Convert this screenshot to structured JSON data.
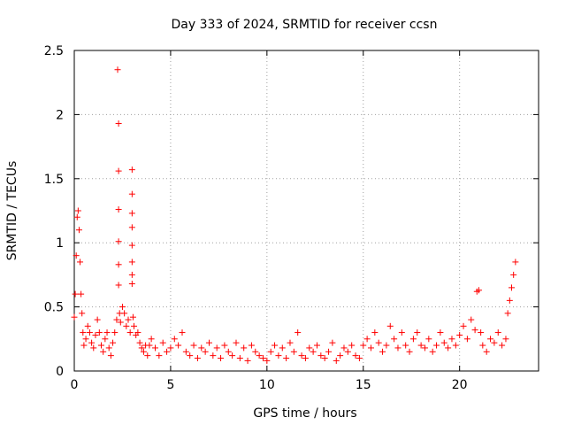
{
  "chart_data": {
    "type": "scatter",
    "title": "Day 333 of 2024, SRMTID for receiver ccsn",
    "xlabel": "GPS time / hours",
    "ylabel": "SRMTID / TECUs",
    "xlim": [
      0,
      24.1
    ],
    "ylim": [
      0,
      2.5
    ],
    "xticks": [
      0,
      5,
      10,
      15,
      20
    ],
    "yticks": [
      0,
      0.5,
      1,
      1.5,
      2,
      2.5
    ],
    "xtick_labels": [
      "0",
      "5",
      "10",
      "15",
      "20"
    ],
    "ytick_labels": [
      "0",
      "0.5",
      "1",
      "1.5",
      "2",
      "2.5"
    ],
    "grid": true,
    "marker": "+",
    "color": "#ff0000",
    "series": [
      {
        "name": "SRMTID",
        "x": [
          0.0,
          0.05,
          0.1,
          0.15,
          0.2,
          0.25,
          0.3,
          0.35,
          0.4,
          0.45,
          0.5,
          0.6,
          0.7,
          0.8,
          0.9,
          1.0,
          1.1,
          1.2,
          1.3,
          1.4,
          1.5,
          1.6,
          1.7,
          1.8,
          1.9,
          2.0,
          2.1,
          2.2,
          2.25,
          2.3,
          2.3,
          2.3,
          2.3,
          2.3,
          2.3,
          2.35,
          2.4,
          2.5,
          2.6,
          2.7,
          2.8,
          2.9,
          3.0,
          3.0,
          3.0,
          3.0,
          3.0,
          3.0,
          3.0,
          3.0,
          3.05,
          3.1,
          3.2,
          3.3,
          3.4,
          3.5,
          3.6,
          3.7,
          3.8,
          3.9,
          4.0,
          4.2,
          4.4,
          4.6,
          4.8,
          5.0,
          5.2,
          5.4,
          5.6,
          5.8,
          6.0,
          6.2,
          6.4,
          6.6,
          6.8,
          7.0,
          7.2,
          7.4,
          7.6,
          7.8,
          8.0,
          8.2,
          8.4,
          8.6,
          8.8,
          9.0,
          9.2,
          9.4,
          9.6,
          9.8,
          10.0,
          10.2,
          10.4,
          10.6,
          10.8,
          11.0,
          11.2,
          11.4,
          11.6,
          11.8,
          12.0,
          12.2,
          12.4,
          12.6,
          12.8,
          13.0,
          13.2,
          13.4,
          13.6,
          13.8,
          14.0,
          14.2,
          14.4,
          14.6,
          14.8,
          15.0,
          15.2,
          15.4,
          15.6,
          15.8,
          16.0,
          16.2,
          16.4,
          16.6,
          16.8,
          17.0,
          17.2,
          17.4,
          17.6,
          17.8,
          18.0,
          18.2,
          18.4,
          18.6,
          18.8,
          19.0,
          19.2,
          19.4,
          19.6,
          19.8,
          20.0,
          20.2,
          20.4,
          20.6,
          20.8,
          20.9,
          21.0,
          21.1,
          21.2,
          21.4,
          21.6,
          21.8,
          22.0,
          22.2,
          22.4,
          22.5,
          22.6,
          22.7,
          22.8,
          22.9
        ],
        "y": [
          0.42,
          0.6,
          0.9,
          1.2,
          1.25,
          1.1,
          0.85,
          0.6,
          0.45,
          0.3,
          0.2,
          0.25,
          0.35,
          0.3,
          0.22,
          0.18,
          0.28,
          0.4,
          0.3,
          0.2,
          0.15,
          0.25,
          0.3,
          0.18,
          0.12,
          0.22,
          0.3,
          0.4,
          2.35,
          1.93,
          1.56,
          1.26,
          1.01,
          0.83,
          0.67,
          0.45,
          0.38,
          0.5,
          0.45,
          0.35,
          0.4,
          0.3,
          1.57,
          1.38,
          1.23,
          1.12,
          0.98,
          0.85,
          0.75,
          0.68,
          0.42,
          0.35,
          0.28,
          0.3,
          0.22,
          0.18,
          0.15,
          0.2,
          0.12,
          0.2,
          0.25,
          0.18,
          0.12,
          0.22,
          0.15,
          0.18,
          0.25,
          0.2,
          0.3,
          0.15,
          0.12,
          0.2,
          0.1,
          0.18,
          0.15,
          0.22,
          0.12,
          0.18,
          0.1,
          0.2,
          0.15,
          0.12,
          0.22,
          0.1,
          0.18,
          0.08,
          0.2,
          0.15,
          0.12,
          0.1,
          0.08,
          0.15,
          0.2,
          0.12,
          0.18,
          0.1,
          0.22,
          0.15,
          0.3,
          0.12,
          0.1,
          0.18,
          0.15,
          0.2,
          0.12,
          0.1,
          0.15,
          0.22,
          0.08,
          0.12,
          0.18,
          0.15,
          0.2,
          0.12,
          0.1,
          0.2,
          0.25,
          0.18,
          0.3,
          0.22,
          0.15,
          0.2,
          0.35,
          0.25,
          0.18,
          0.3,
          0.2,
          0.15,
          0.25,
          0.3,
          0.2,
          0.18,
          0.25,
          0.15,
          0.2,
          0.3,
          0.22,
          0.18,
          0.25,
          0.2,
          0.28,
          0.35,
          0.25,
          0.4,
          0.32,
          0.62,
          0.63,
          0.3,
          0.2,
          0.15,
          0.25,
          0.22,
          0.3,
          0.2,
          0.25,
          0.45,
          0.55,
          0.65,
          0.75,
          0.85
        ]
      }
    ]
  }
}
